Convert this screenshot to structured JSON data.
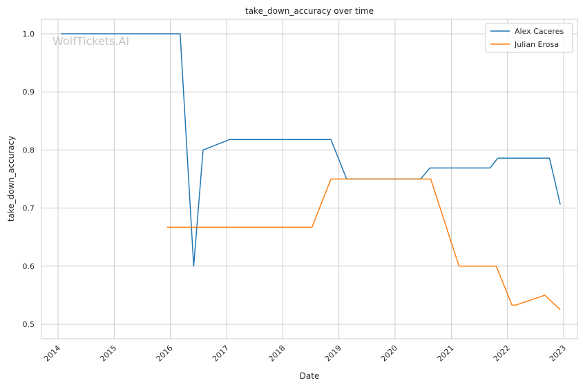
{
  "watermark": "WolfTickets.AI",
  "chart_data": {
    "type": "line",
    "title": "take_down_accuracy over time",
    "xlabel": "Date",
    "ylabel": "take_down_accuracy",
    "xlim": [
      "2013-09-15",
      "2023-04-01"
    ],
    "ylim": [
      0.475,
      1.025
    ],
    "x_ticks": [
      "2014",
      "2015",
      "2016",
      "2017",
      "2018",
      "2019",
      "2020",
      "2021",
      "2022",
      "2023"
    ],
    "y_ticks": [
      "0.5",
      "0.6",
      "0.7",
      "0.8",
      "0.9",
      "1.0"
    ],
    "grid": true,
    "legend_position": "top-right",
    "series": [
      {
        "name": "Alex Caceres",
        "color": "#1f77b4",
        "points": [
          [
            "2014-01-20",
            1.0
          ],
          [
            "2016-03-05",
            1.0
          ],
          [
            "2016-06-01",
            0.6
          ],
          [
            "2016-08-01",
            0.8
          ],
          [
            "2017-01-20",
            0.818
          ],
          [
            "2018-11-10",
            0.818
          ],
          [
            "2019-02-20",
            0.75
          ],
          [
            "2020-06-15",
            0.75
          ],
          [
            "2020-08-15",
            0.769
          ],
          [
            "2021-09-10",
            0.769
          ],
          [
            "2021-10-30",
            0.786
          ],
          [
            "2022-10-01",
            0.786
          ],
          [
            "2022-12-10",
            0.706
          ]
        ]
      },
      {
        "name": "Julian Erosa",
        "color": "#ff7f0e",
        "points": [
          [
            "2015-12-10",
            0.667
          ],
          [
            "2018-07-10",
            0.667
          ],
          [
            "2018-11-10",
            0.75
          ],
          [
            "2020-08-20",
            0.75
          ],
          [
            "2021-02-20",
            0.6
          ],
          [
            "2021-10-20",
            0.6
          ],
          [
            "2022-01-30",
            0.533
          ],
          [
            "2022-02-25",
            0.533
          ],
          [
            "2022-09-01",
            0.55
          ],
          [
            "2022-12-10",
            0.525
          ]
        ]
      }
    ]
  }
}
